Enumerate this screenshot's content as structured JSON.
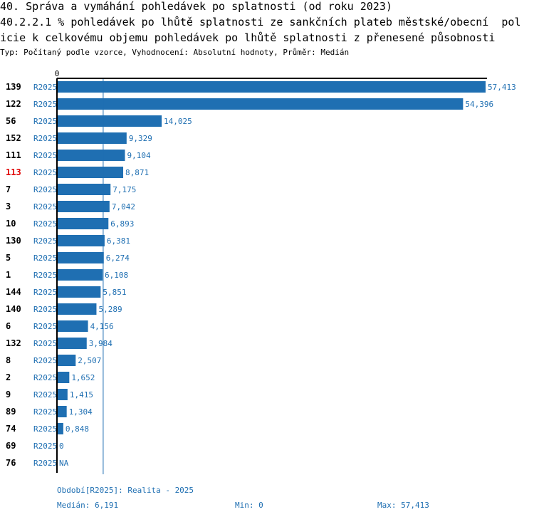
{
  "header": {
    "title_line1": "40. Správa a vymáhání pohledávek po splatnosti (od roku 2023)",
    "title_line2": "40.2.2.1 % pohledávek po lhůtě splatnosti ze sankčních plateb městské/obecní  pol",
    "title_line3": "icie k celkovému objemu pohledávek po lhůtě splatnosti z přenesené působnosti",
    "subtitle": "Typ: Počítaný podle vzorce, Vyhodnocení: Absolutní hodnoty, Průměr: Medián"
  },
  "chart_data": {
    "type": "bar",
    "orientation": "horizontal",
    "axis_zero_label": "0",
    "xlim": [
      0,
      57.413
    ],
    "median": 6.191,
    "series_label": "R2025",
    "categories": [
      "139",
      "122",
      "56",
      "152",
      "111",
      "113",
      "7",
      "3",
      "10",
      "130",
      "5",
      "1",
      "144",
      "140",
      "6",
      "132",
      "8",
      "2",
      "9",
      "89",
      "74",
      "69",
      "76"
    ],
    "values": [
      57.413,
      54.396,
      14.025,
      9.329,
      9.104,
      8.871,
      7.175,
      7.042,
      6.893,
      6.381,
      6.274,
      6.108,
      5.851,
      5.289,
      4.156,
      3.984,
      2.507,
      1.652,
      1.415,
      1.304,
      0.848,
      0,
      null
    ],
    "value_labels": [
      "57,413",
      "54,396",
      "14,025",
      "9,329",
      "9,104",
      "8,871",
      "7,175",
      "7,042",
      "6,893",
      "6,381",
      "6,274",
      "6,108",
      "5,851",
      "5,289",
      "4,156",
      "3,984",
      "2,507",
      "1,652",
      "1,415",
      "1,304",
      "0,848",
      "0",
      "NA"
    ],
    "highlight_category": "113",
    "colors": {
      "bar": "#1f6fb2",
      "label": "#1f6fb2",
      "highlight": "#e00000",
      "median_line": "#1f6fb2",
      "axis": "#000000"
    }
  },
  "footer": {
    "period": "Období[R2025]: Realita - 2025",
    "median": "Medián: 6,191",
    "min": "Min: 0",
    "max": "Max: 57,413"
  }
}
